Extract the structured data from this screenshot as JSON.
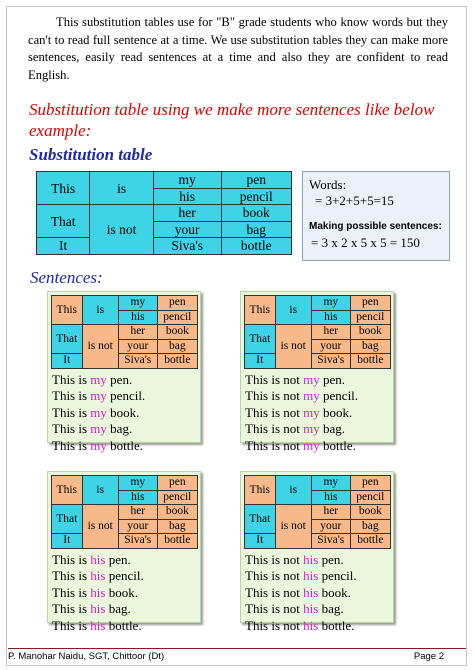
{
  "intro": "This substitution tables use for \"B\" grade students who know words but they can't to read full sentence at a time. We use substitution tables they can make more sentences, easily read sentences at a time and also they are confident to read English.",
  "heading_red": "Substitution table using we make more sentences like below example:",
  "heading_table": "Substitution table",
  "main_table": {
    "c1": [
      "This",
      "That",
      "It"
    ],
    "c2": [
      "is",
      "is not"
    ],
    "c3": [
      "my",
      "his",
      "her",
      "your",
      "Siva's"
    ],
    "c4": [
      "pen",
      "pencil",
      "book",
      "bag",
      "bottle"
    ]
  },
  "words_box": {
    "line1": "Words:",
    "line2": "= 3+2+5+5=15",
    "line3": "Making possible sentences:",
    "line4": "= 3 x 2 x 5 x 5 = 150"
  },
  "heading_sentences": "Sentences:",
  "cards": [
    {
      "pre": [
        "This is ",
        "This is ",
        "This is ",
        "This is ",
        "This is "
      ],
      "kw": "my",
      "post": [
        " pen.",
        " pencil.",
        " book.",
        " bag.",
        " bottle."
      ]
    },
    {
      "pre": [
        "This is not ",
        "This is not ",
        "This is not ",
        "This is not ",
        "This is not "
      ],
      "kw": "my",
      "post": [
        " pen.",
        " pencil.",
        " book.",
        " bag.",
        " bottle."
      ]
    },
    {
      "pre": [
        "This is ",
        "This is ",
        "This is ",
        "This is ",
        "This is "
      ],
      "kw": "his",
      "post": [
        " pen.",
        " pencil.",
        " book.",
        " bag.",
        " bottle."
      ]
    },
    {
      "pre": [
        "This is not ",
        "This is not ",
        "This is not ",
        "This is not ",
        "This is not "
      ],
      "kw": "his",
      "post": [
        " pen.",
        " pencil.",
        " book.",
        " bag.",
        " bottle."
      ]
    }
  ],
  "colors": {
    "blue_cell": "#3fd3e6",
    "orange_cell": "#f7b98a",
    "keyword": "#d020c8",
    "heading_red": "#e00000",
    "heading_blue": "#1f2aa8"
  },
  "footer": {
    "left": "P. Manohar Naidu, SGT, Chittoor (Dt)",
    "right": "Page 2"
  }
}
